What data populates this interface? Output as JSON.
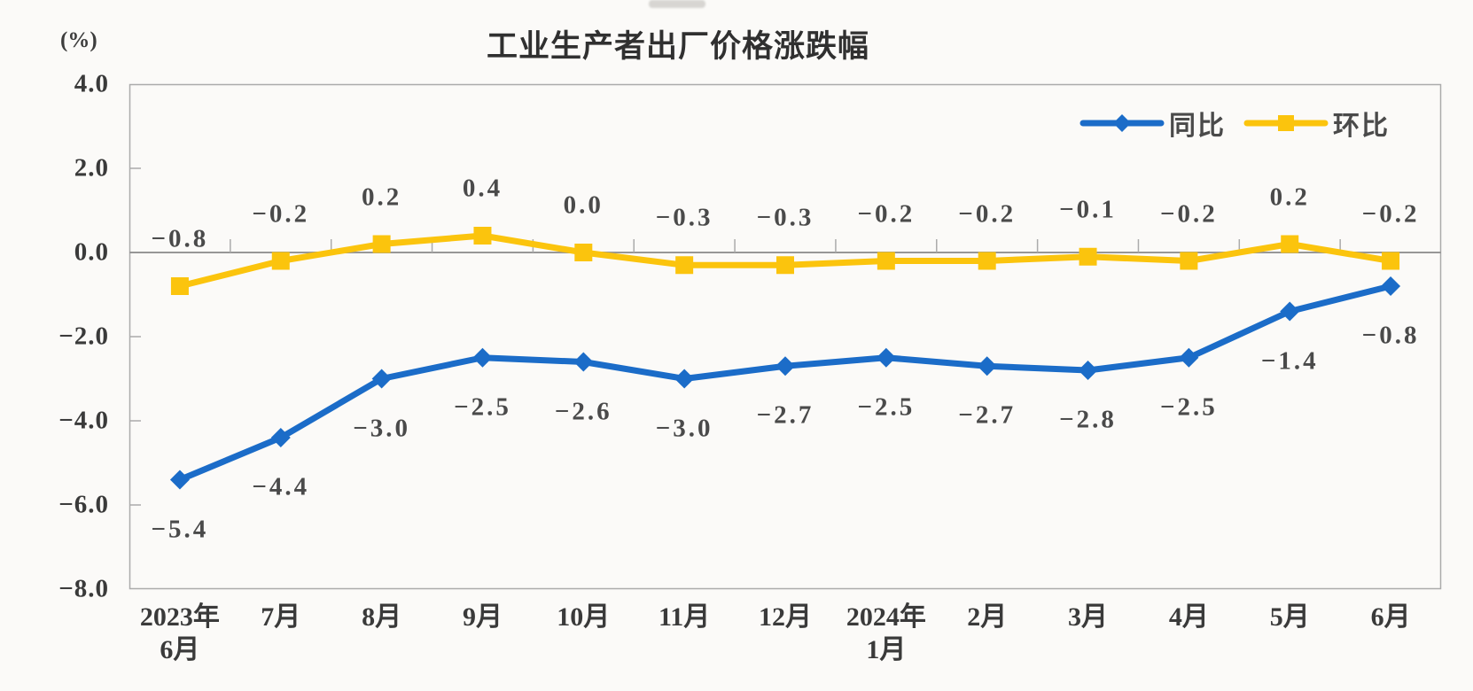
{
  "page": {
    "background_color": "#FBFAF8"
  },
  "chart_data": {
    "type": "line",
    "title": "工业生产者出厂价格涨跌幅",
    "unit_label": "(%)",
    "categories": [
      [
        "2023年",
        "6月"
      ],
      [
        "7月"
      ],
      [
        "8月"
      ],
      [
        "9月"
      ],
      [
        "10月"
      ],
      [
        "11月"
      ],
      [
        "12月"
      ],
      [
        "2024年",
        "1月"
      ],
      [
        "2月"
      ],
      [
        "3月"
      ],
      [
        "4月"
      ],
      [
        "5月"
      ],
      [
        "6月"
      ]
    ],
    "series": [
      {
        "id": "yoy",
        "name": "同比",
        "color": "#1B6CC8",
        "marker": "diamond",
        "label_position": "below",
        "values": [
          -5.4,
          -4.4,
          -3.0,
          -2.5,
          -2.6,
          -3.0,
          -2.7,
          -2.5,
          -2.7,
          -2.8,
          -2.5,
          -1.4,
          -0.8
        ]
      },
      {
        "id": "mom",
        "name": "环比",
        "color": "#FBC40D",
        "marker": "square",
        "label_position": "above",
        "values": [
          -0.8,
          -0.2,
          0.2,
          0.4,
          0.0,
          -0.3,
          -0.3,
          -0.2,
          -0.2,
          -0.1,
          -0.2,
          0.2,
          -0.2
        ]
      }
    ],
    "y_axis": {
      "min": -8.0,
      "max": 4.0,
      "step": 2.0,
      "tick_labels": [
        "4.0",
        "2.0",
        "0.0",
        "-2.0",
        "-4.0",
        "-6.0",
        "-8.0"
      ]
    },
    "x_axis_crosses_at": 0,
    "legend_position": "top-right",
    "grid": false,
    "axis_color": "#ABABAB",
    "zero_line_color": "#979797",
    "text_color": "#3A3A3A",
    "data_label_color": "#4A4A4A"
  }
}
